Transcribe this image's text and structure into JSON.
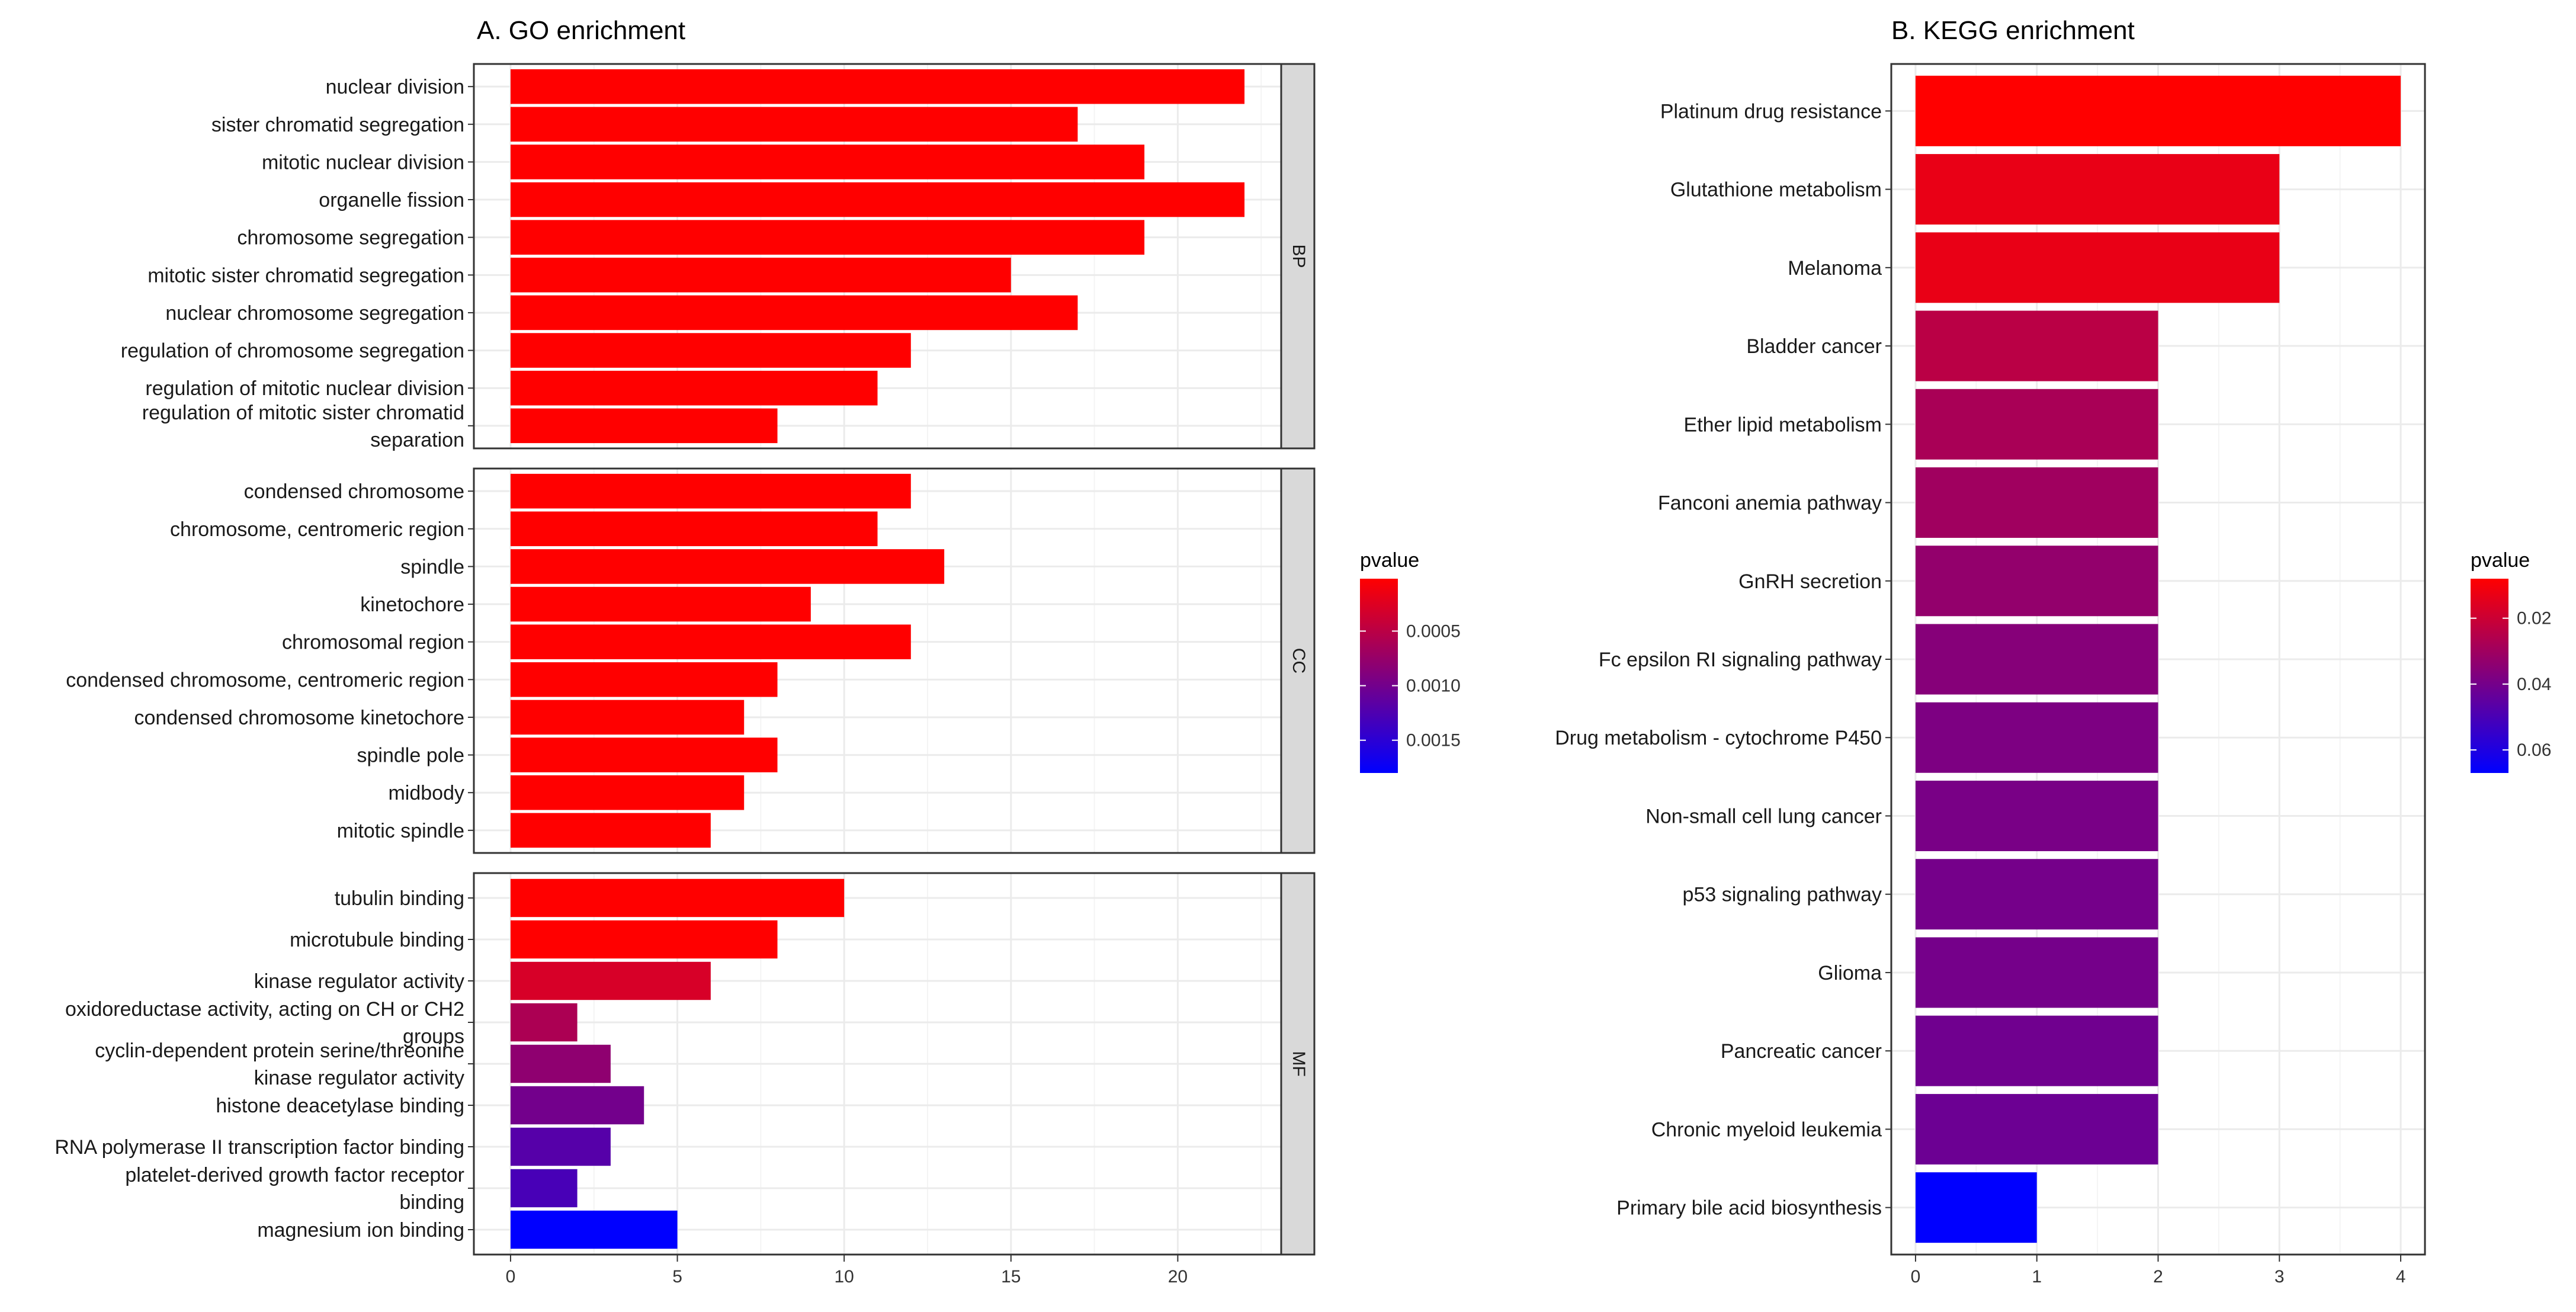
{
  "chart_data": [
    {
      "type": "bar",
      "orientation": "horizontal",
      "title": "A. GO enrichment",
      "xlim": [
        -1.1,
        23.1
      ],
      "xticks": [
        0,
        5,
        10,
        15,
        20
      ],
      "legend": {
        "title": "pvalue",
        "ticks": [
          "0.0005",
          "0.0010",
          "0.0015"
        ],
        "range": [
          2e-05,
          0.0018
        ],
        "tick_values": [
          0.0005,
          0.001,
          0.0015
        ],
        "position": "right"
      },
      "facets": [
        {
          "name": "BP",
          "terms": [
            {
              "label": [
                "nuclear division"
              ],
              "value": 22,
              "pvalue": 1e-05
            },
            {
              "label": [
                "sister chromatid segregation"
              ],
              "value": 17,
              "pvalue": 1e-05
            },
            {
              "label": [
                "mitotic nuclear division"
              ],
              "value": 19,
              "pvalue": 1e-05
            },
            {
              "label": [
                "organelle fission"
              ],
              "value": 22,
              "pvalue": 1e-05
            },
            {
              "label": [
                "chromosome segregation"
              ],
              "value": 19,
              "pvalue": 1e-05
            },
            {
              "label": [
                "mitotic sister chromatid segregation"
              ],
              "value": 15,
              "pvalue": 1e-05
            },
            {
              "label": [
                "nuclear chromosome segregation"
              ],
              "value": 17,
              "pvalue": 1e-05
            },
            {
              "label": [
                "regulation of chromosome segregation"
              ],
              "value": 12,
              "pvalue": 1e-05
            },
            {
              "label": [
                "regulation of mitotic nuclear division"
              ],
              "value": 11,
              "pvalue": 1e-05
            },
            {
              "label": [
                "regulation of mitotic sister chromatid",
                "separation"
              ],
              "value": 8,
              "pvalue": 1e-05
            }
          ]
        },
        {
          "name": "CC",
          "terms": [
            {
              "label": [
                "condensed chromosome"
              ],
              "value": 12,
              "pvalue": 1e-05
            },
            {
              "label": [
                "chromosome, centromeric region"
              ],
              "value": 11,
              "pvalue": 1e-05
            },
            {
              "label": [
                "spindle"
              ],
              "value": 13,
              "pvalue": 1e-05
            },
            {
              "label": [
                "kinetochore"
              ],
              "value": 9,
              "pvalue": 1e-05
            },
            {
              "label": [
                "chromosomal region"
              ],
              "value": 12,
              "pvalue": 1e-05
            },
            {
              "label": [
                "condensed chromosome, centromeric region"
              ],
              "value": 8,
              "pvalue": 1e-05
            },
            {
              "label": [
                "condensed chromosome kinetochore"
              ],
              "value": 7,
              "pvalue": 1e-05
            },
            {
              "label": [
                "spindle pole"
              ],
              "value": 8,
              "pvalue": 1e-05
            },
            {
              "label": [
                "midbody"
              ],
              "value": 7,
              "pvalue": 1e-05
            },
            {
              "label": [
                "mitotic spindle"
              ],
              "value": 6,
              "pvalue": 1e-05
            }
          ]
        },
        {
          "name": "MF",
          "terms": [
            {
              "label": [
                "tubulin binding"
              ],
              "value": 10,
              "pvalue": 2e-05
            },
            {
              "label": [
                "microtubule binding"
              ],
              "value": 8,
              "pvalue": 2e-05
            },
            {
              "label": [
                "kinase regulator activity"
              ],
              "value": 6,
              "pvalue": 0.0003
            },
            {
              "label": [
                "oxidoreductase activity, acting on CH or CH2",
                "groups"
              ],
              "value": 2,
              "pvalue": 0.0006
            },
            {
              "label": [
                "cyclin-dependent protein serine/threonine",
                "kinase regulator activity"
              ],
              "value": 3,
              "pvalue": 0.0008
            },
            {
              "label": [
                "histone deacetylase binding"
              ],
              "value": 4,
              "pvalue": 0.001
            },
            {
              "label": [
                "RNA polymerase II transcription factor binding"
              ],
              "value": 3,
              "pvalue": 0.0012
            },
            {
              "label": [
                "platelet-derived growth factor receptor",
                "binding"
              ],
              "value": 2,
              "pvalue": 0.0013
            },
            {
              "label": [
                "magnesium ion binding"
              ],
              "value": 5,
              "pvalue": 0.0018
            }
          ]
        }
      ]
    },
    {
      "type": "bar",
      "orientation": "horizontal",
      "title": "B. KEGG enrichment",
      "xlim": [
        -0.2,
        4.2
      ],
      "xticks": [
        0,
        1,
        2,
        3,
        4
      ],
      "legend": {
        "title": "pvalue",
        "ticks": [
          "0.02",
          "0.04",
          "0.06"
        ],
        "range": [
          0.008,
          0.067
        ],
        "tick_values": [
          0.02,
          0.04,
          0.06
        ],
        "position": "right"
      },
      "terms": [
        {
          "label": [
            "Platinum drug resistance"
          ],
          "value": 4,
          "pvalue": 0.008
        },
        {
          "label": [
            "Glutathione metabolism"
          ],
          "value": 3,
          "pvalue": 0.013
        },
        {
          "label": [
            "Melanoma"
          ],
          "value": 3,
          "pvalue": 0.013
        },
        {
          "label": [
            "Bladder cancer"
          ],
          "value": 2,
          "pvalue": 0.024
        },
        {
          "label": [
            "Ether lipid metabolism"
          ],
          "value": 2,
          "pvalue": 0.028
        },
        {
          "label": [
            "Fanconi anemia pathway"
          ],
          "value": 2,
          "pvalue": 0.03
        },
        {
          "label": [
            "GnRH secretion"
          ],
          "value": 2,
          "pvalue": 0.033
        },
        {
          "label": [
            "Fc epsilon RI signaling pathway"
          ],
          "value": 2,
          "pvalue": 0.036
        },
        {
          "label": [
            "Drug metabolism - cytochrome P450"
          ],
          "value": 2,
          "pvalue": 0.038
        },
        {
          "label": [
            "Non-small cell lung cancer"
          ],
          "value": 2,
          "pvalue": 0.039
        },
        {
          "label": [
            "p53 signaling pathway"
          ],
          "value": 2,
          "pvalue": 0.04
        },
        {
          "label": [
            "Glioma"
          ],
          "value": 2,
          "pvalue": 0.04
        },
        {
          "label": [
            "Pancreatic cancer"
          ],
          "value": 2,
          "pvalue": 0.041
        },
        {
          "label": [
            "Chronic myeloid leukemia"
          ],
          "value": 2,
          "pvalue": 0.042
        },
        {
          "label": [
            "Primary bile acid biosynthesis"
          ],
          "value": 1,
          "pvalue": 0.067
        }
      ]
    }
  ],
  "colors": {
    "low": "#ff0000",
    "high": "#0000ff",
    "grid": "#ebebeb",
    "strip": "#d9d9d9"
  }
}
